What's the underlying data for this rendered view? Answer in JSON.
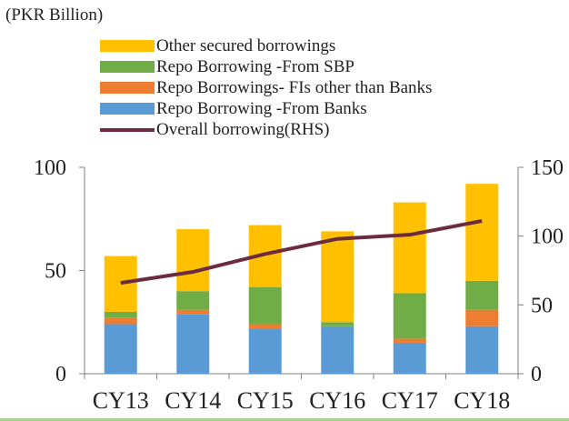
{
  "unit_label": "(PKR Billion)",
  "colors": {
    "other_secured": "#FFC000",
    "repo_sbp": "#70AD47",
    "repo_fis": "#ED7D31",
    "repo_banks": "#5B9BD5",
    "overall": "#6A2C3E",
    "axis": "#7f7f7f"
  },
  "chart_data": {
    "type": "bar",
    "stacked": true,
    "categories": [
      "CY13",
      "CY14",
      "CY15",
      "CY16",
      "CY17",
      "CY18"
    ],
    "series": [
      {
        "name": "Repo Borrowing -From Banks",
        "color_key": "repo_banks",
        "values": [
          24,
          29,
          22,
          23,
          15,
          23
        ]
      },
      {
        "name": "Repo Borrowings- FIs other than Banks",
        "color_key": "repo_fis",
        "values": [
          3,
          2,
          2,
          0,
          2,
          8
        ]
      },
      {
        "name": "Repo Borrowing -From SBP",
        "color_key": "repo_sbp",
        "values": [
          3,
          9,
          18,
          2,
          22,
          14
        ]
      },
      {
        "name": "Other secured borrowings",
        "color_key": "other_secured",
        "values": [
          27,
          30,
          30,
          44,
          44,
          47
        ]
      }
    ],
    "line_series": {
      "name": "Overall borrowing(RHS)",
      "color_key": "overall",
      "axis": "right",
      "values": [
        66,
        74,
        87,
        98,
        101,
        111
      ]
    },
    "legend_order": [
      {
        "name": "Other secured borrowings",
        "color_key": "other_secured",
        "kind": "bar"
      },
      {
        "name": "Repo Borrowing -From SBP",
        "color_key": "repo_sbp",
        "kind": "bar"
      },
      {
        "name": "Repo Borrowings- FIs other than Banks",
        "color_key": "repo_fis",
        "kind": "bar"
      },
      {
        "name": "Repo Borrowing -From Banks",
        "color_key": "repo_banks",
        "kind": "bar"
      },
      {
        "name": "Overall borrowing(RHS)",
        "color_key": "overall",
        "kind": "line"
      }
    ],
    "y_left": {
      "min": 0,
      "max": 100,
      "ticks": [
        0,
        50,
        100
      ]
    },
    "y_right": {
      "min": 0,
      "max": 150,
      "ticks": [
        0,
        50,
        100,
        150
      ]
    },
    "grid": false,
    "legend_position": "top-left"
  }
}
